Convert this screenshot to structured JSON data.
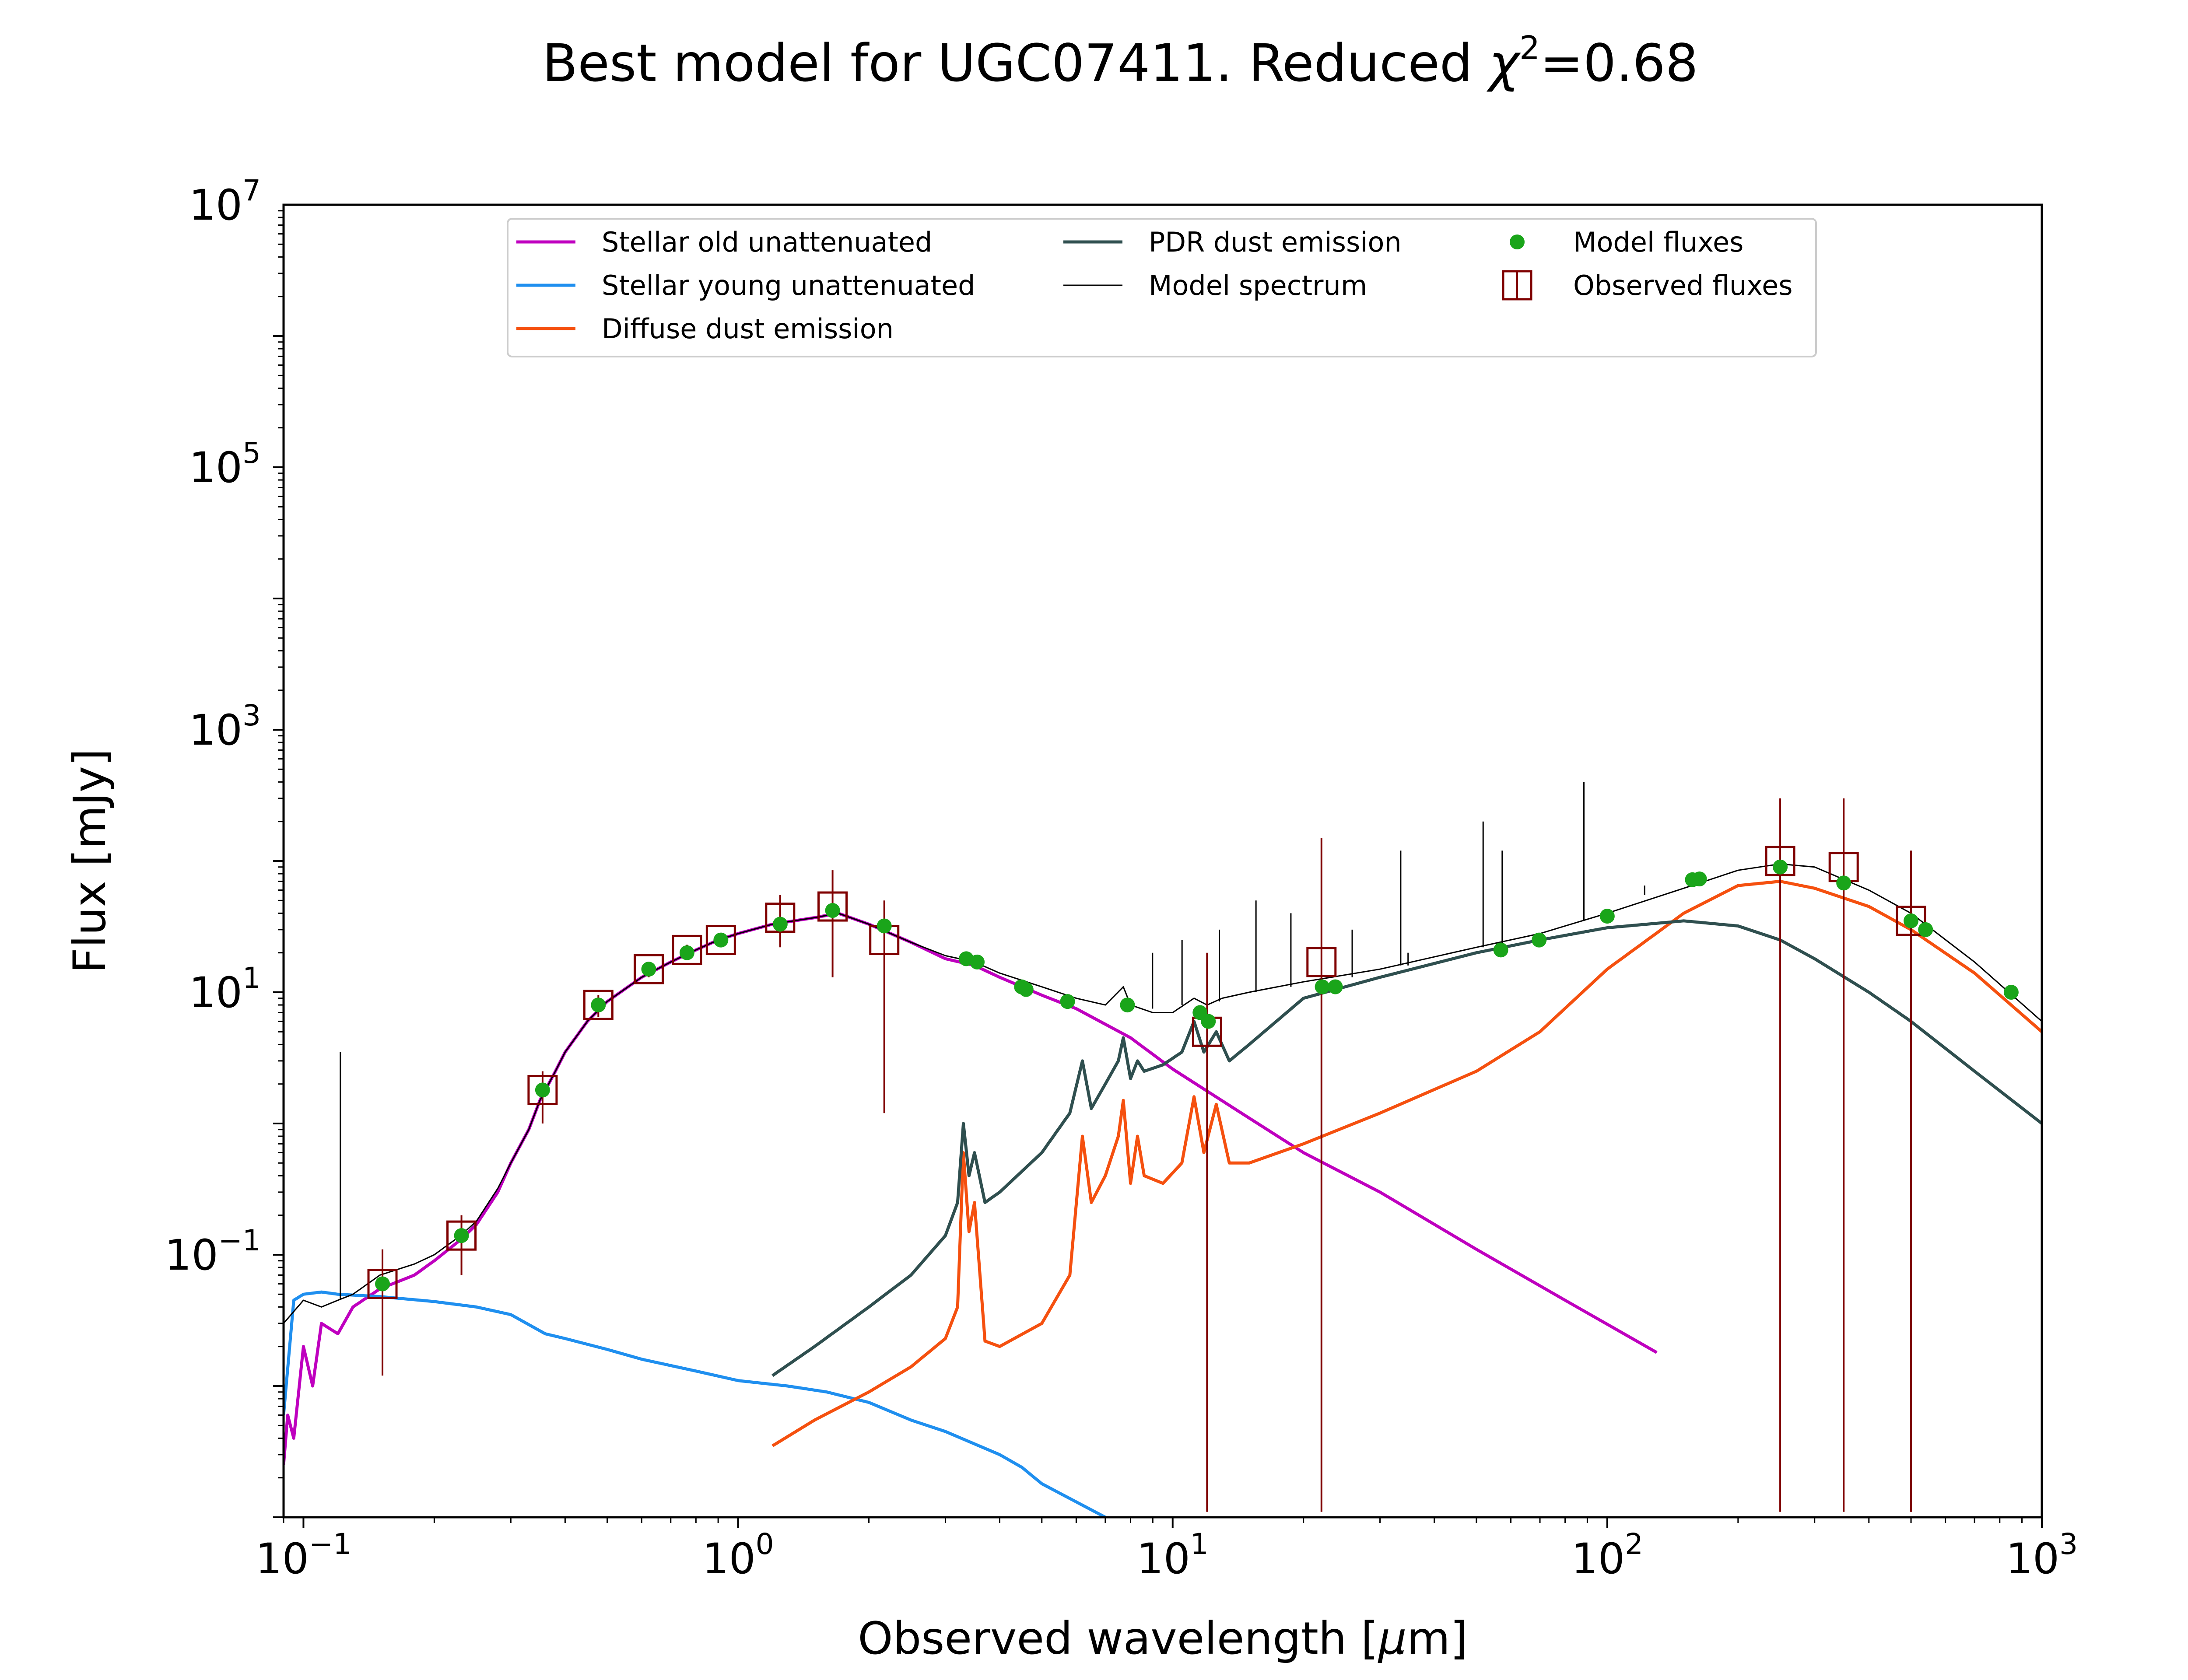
{
  "chart_data": {
    "type": "line",
    "title_prefix": "Best model for UGC07411. Reduced ",
    "title_symbol": "χ",
    "title_symbol_exp": "2",
    "title_suffix": "=0.68",
    "xlabel_prefix": "Observed wavelength [",
    "xlabel_symbol": "μ",
    "xlabel_suffix": "m]",
    "ylabel": "Flux [mJy]",
    "x_scale": "log",
    "y_scale": "log",
    "xlim": [
      0.09,
      1000
    ],
    "ylim": [
      0.001,
      10000000
    ],
    "grid": false,
    "legend_position": "top-center",
    "x_ticks": [
      {
        "value": 0.1,
        "base": "10",
        "exp": "−1"
      },
      {
        "value": 1,
        "base": "10",
        "exp": "0"
      },
      {
        "value": 10,
        "base": "10",
        "exp": "1"
      },
      {
        "value": 100,
        "base": "10",
        "exp": "2"
      },
      {
        "value": 1000,
        "base": "10",
        "exp": "3"
      }
    ],
    "y_ticks": [
      {
        "value": 0.1,
        "base": "10",
        "exp": "−1"
      },
      {
        "value": 10,
        "base": "10",
        "exp": "1"
      },
      {
        "value": 1000,
        "base": "10",
        "exp": "3"
      },
      {
        "value": 100000,
        "base": "10",
        "exp": "5"
      },
      {
        "value": 10000000,
        "base": "10",
        "exp": "7"
      }
    ],
    "series": [
      {
        "name": "Stellar old unattenuated",
        "color": "#bf00bf",
        "width": 7,
        "x": [
          0.09,
          0.092,
          0.095,
          0.1,
          0.105,
          0.11,
          0.12,
          0.13,
          0.15,
          0.18,
          0.2,
          0.23,
          0.25,
          0.28,
          0.3,
          0.33,
          0.35,
          0.38,
          0.4,
          0.45,
          0.5,
          0.6,
          0.7,
          0.8,
          0.9,
          1.0,
          1.2,
          1.5,
          1.7,
          2.0,
          2.5,
          3.0,
          3.5,
          4.0,
          5.0,
          6.0,
          8.0,
          10.0,
          15.0,
          20.0,
          30.0,
          50.0,
          80.0,
          130.0
        ],
        "y": [
          0.0025,
          0.006,
          0.004,
          0.02,
          0.01,
          0.03,
          0.025,
          0.04,
          0.055,
          0.07,
          0.09,
          0.13,
          0.17,
          0.3,
          0.5,
          0.9,
          1.5,
          2.5,
          3.5,
          6,
          8.5,
          13,
          17,
          21,
          25,
          28,
          33,
          37,
          40,
          33,
          24,
          18,
          16,
          13,
          9.5,
          7.5,
          4.5,
          2.6,
          1.1,
          0.6,
          0.3,
          0.11,
          0.045,
          0.018
        ]
      },
      {
        "name": "Stellar young unattenuated",
        "color": "#1f8fef",
        "width": 7,
        "x": [
          0.09,
          0.095,
          0.1,
          0.11,
          0.12,
          0.15,
          0.2,
          0.25,
          0.3,
          0.36,
          0.4,
          0.5,
          0.6,
          0.8,
          1.0,
          1.3,
          1.6,
          2.0,
          2.5,
          3.0,
          4.0,
          4.5,
          5.0,
          7.0
        ],
        "y": [
          0.006,
          0.045,
          0.05,
          0.052,
          0.05,
          0.048,
          0.044,
          0.04,
          0.035,
          0.025,
          0.023,
          0.019,
          0.016,
          0.013,
          0.011,
          0.01,
          0.009,
          0.0075,
          0.0055,
          0.0045,
          0.003,
          0.0024,
          0.0018,
          0.001
        ]
      },
      {
        "name": "Diffuse dust emission",
        "color": "#f5500f",
        "width": 7,
        "x": [
          1.2,
          1.5,
          2.0,
          2.5,
          3.0,
          3.2,
          3.3,
          3.4,
          3.5,
          3.7,
          4.0,
          5.0,
          5.8,
          6.2,
          6.5,
          7.0,
          7.5,
          7.7,
          8.0,
          8.3,
          8.6,
          9.5,
          10.5,
          11.2,
          11.8,
          12.6,
          13.5,
          15.0,
          20.0,
          30.0,
          50.0,
          70.0,
          100.0,
          150.0,
          200.0,
          250.0,
          300.0,
          400.0,
          500.0,
          700.0,
          1000.0
        ],
        "y": [
          0.0035,
          0.0055,
          0.009,
          0.014,
          0.023,
          0.04,
          0.6,
          0.15,
          0.25,
          0.022,
          0.02,
          0.03,
          0.07,
          0.8,
          0.25,
          0.4,
          0.8,
          1.5,
          0.35,
          0.8,
          0.4,
          0.35,
          0.5,
          1.6,
          0.6,
          1.4,
          0.5,
          0.5,
          0.7,
          1.2,
          2.5,
          5,
          15,
          40,
          65,
          70,
          62,
          45,
          30,
          14,
          5
        ]
      },
      {
        "name": "PDR dust emission",
        "color": "#2f4f4f",
        "width": 7,
        "x": [
          1.2,
          1.5,
          2.0,
          2.5,
          3.0,
          3.2,
          3.3,
          3.4,
          3.5,
          3.7,
          4.0,
          5.0,
          5.8,
          6.2,
          6.5,
          7.0,
          7.5,
          7.7,
          8.0,
          8.3,
          8.6,
          9.5,
          10.5,
          11.2,
          11.8,
          12.6,
          13.5,
          15.0,
          20.0,
          30.0,
          50.0,
          70.0,
          100.0,
          150.0,
          200.0,
          250.0,
          300.0,
          400.0,
          500.0,
          700.0,
          1000.0
        ],
        "y": [
          0.012,
          0.02,
          0.04,
          0.07,
          0.14,
          0.25,
          1.0,
          0.4,
          0.6,
          0.25,
          0.3,
          0.6,
          1.2,
          3.0,
          1.3,
          2.0,
          3.0,
          4.5,
          2.2,
          3.0,
          2.5,
          2.8,
          3.5,
          6.0,
          3.5,
          5.0,
          3.0,
          4.0,
          9,
          13,
          20,
          25,
          31,
          35,
          32,
          25,
          18,
          10,
          6,
          2.5,
          1.0
        ]
      },
      {
        "name": "Model spectrum",
        "color": "#000000",
        "width": 3,
        "x": [
          0.09,
          0.1,
          0.11,
          0.12,
          0.13,
          0.15,
          0.18,
          0.2,
          0.23,
          0.25,
          0.28,
          0.3,
          0.33,
          0.35,
          0.38,
          0.4,
          0.45,
          0.5,
          0.6,
          0.7,
          0.8,
          0.9,
          1.0,
          1.2,
          1.5,
          1.7,
          2.0,
          2.5,
          3.0,
          3.5,
          4.0,
          5.0,
          6.0,
          7.0,
          7.7,
          8.0,
          9.0,
          10.0,
          11.2,
          12.0,
          13.0,
          15.0,
          20.0,
          30.0,
          50.0,
          70.0,
          100.0,
          150.0,
          200.0,
          250.0,
          300.0,
          400.0,
          500.0,
          700.0,
          1000.0
        ],
        "y": [
          0.03,
          0.045,
          0.04,
          0.045,
          0.05,
          0.07,
          0.085,
          0.1,
          0.14,
          0.18,
          0.32,
          0.5,
          0.9,
          1.5,
          2.5,
          3.5,
          6,
          8.5,
          13,
          17,
          21,
          25,
          28,
          33,
          37,
          40,
          33,
          24,
          19,
          17,
          14,
          11,
          9,
          8,
          11,
          8,
          7,
          7,
          9,
          8,
          9,
          10,
          12,
          15,
          22,
          28,
          40,
          62,
          85,
          95,
          90,
          60,
          40,
          17,
          6
        ]
      }
    ],
    "emission_lines": [
      {
        "x": 0.1216,
        "y0": 0.045,
        "y1": 3.5
      },
      {
        "x": 8.99,
        "y0": 7.5,
        "y1": 20
      },
      {
        "x": 10.51,
        "y0": 8,
        "y1": 25
      },
      {
        "x": 12.81,
        "y0": 8.5,
        "y1": 30
      },
      {
        "x": 15.55,
        "y0": 10,
        "y1": 50
      },
      {
        "x": 18.71,
        "y0": 11,
        "y1": 40
      },
      {
        "x": 25.89,
        "y0": 13,
        "y1": 30
      },
      {
        "x": 33.48,
        "y0": 16,
        "y1": 120
      },
      {
        "x": 34.81,
        "y0": 16,
        "y1": 20
      },
      {
        "x": 51.81,
        "y0": 22,
        "y1": 200
      },
      {
        "x": 57.32,
        "y0": 23,
        "y1": 120
      },
      {
        "x": 88.36,
        "y0": 35,
        "y1": 400
      },
      {
        "x": 121.9,
        "y0": 55,
        "y1": 65
      },
      {
        "x": 157.7,
        "y0": 68,
        "y1": 75
      }
    ],
    "model_fluxes": {
      "name": "Model fluxes",
      "color": "#1aa51a",
      "x": [
        0.152,
        0.231,
        0.355,
        0.477,
        0.623,
        0.763,
        0.913,
        1.25,
        1.65,
        2.17,
        3.35,
        3.55,
        4.49,
        4.6,
        5.73,
        7.87,
        11.56,
        12.08,
        22.09,
        23.68,
        56.9,
        69.7,
        100,
        157,
        163,
        250,
        350,
        500,
        540,
        850
      ],
      "y": [
        0.06,
        0.14,
        1.8,
        8,
        15,
        20,
        25,
        33,
        42,
        32,
        18,
        17,
        11,
        10.5,
        8.5,
        8,
        7,
        6,
        11,
        11,
        21,
        25,
        38,
        72,
        73,
        90,
        68,
        35,
        30,
        10
      ]
    },
    "observed_fluxes": {
      "name": "Observed fluxes",
      "color": "#7f0000",
      "points": [
        {
          "x": 0.152,
          "y": 0.06,
          "ylo": 0.012,
          "yhi": 0.11
        },
        {
          "x": 0.231,
          "y": 0.14,
          "ylo": 0.07,
          "yhi": 0.2
        },
        {
          "x": 0.355,
          "y": 1.8,
          "ylo": 1.0,
          "yhi": 2.5
        },
        {
          "x": 0.477,
          "y": 8,
          "ylo": 6.5,
          "yhi": 9.5
        },
        {
          "x": 0.623,
          "y": 15,
          "ylo": 13,
          "yhi": 17
        },
        {
          "x": 0.763,
          "y": 21,
          "ylo": 19,
          "yhi": 23
        },
        {
          "x": 0.913,
          "y": 25,
          "ylo": 23,
          "yhi": 27
        },
        {
          "x": 1.25,
          "y": 37,
          "ylo": 22,
          "yhi": 55
        },
        {
          "x": 1.65,
          "y": 45,
          "ylo": 13,
          "yhi": 85
        },
        {
          "x": 2.17,
          "y": 25,
          "ylo": 1.2,
          "yhi": 50
        },
        {
          "x": 12.0,
          "y": 5,
          "ylo": 0.0011,
          "yhi": 20
        },
        {
          "x": 22.0,
          "y": 17,
          "ylo": 0.0011,
          "yhi": 150
        },
        {
          "x": 250,
          "y": 100,
          "ylo": 0.0011,
          "yhi": 300
        },
        {
          "x": 350,
          "y": 90,
          "ylo": 0.0011,
          "yhi": 300
        },
        {
          "x": 500,
          "y": 35,
          "ylo": 0.0011,
          "yhi": 120
        }
      ]
    }
  }
}
